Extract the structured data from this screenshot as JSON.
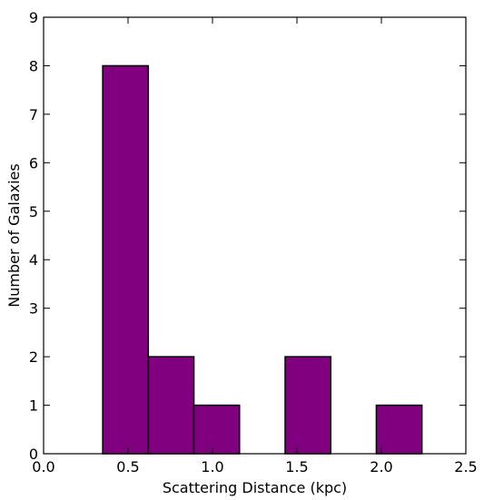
{
  "chart_data": {
    "type": "bar",
    "title": "",
    "xlabel": "Scattering Distance (kpc)",
    "ylabel": "Number of Galaxies",
    "xlim": [
      0.0,
      2.5
    ],
    "ylim": [
      0,
      9
    ],
    "xticks": [
      "0.0",
      "0.5",
      "1.0",
      "1.5",
      "2.0",
      "2.5"
    ],
    "yticks": [
      "0",
      "1",
      "2",
      "3",
      "4",
      "5",
      "6",
      "7",
      "8",
      "9"
    ],
    "bar_color": "#800080",
    "edge_color": "#000000",
    "grid": false,
    "bins": [
      {
        "x0": 0.35,
        "x1": 0.62,
        "count": 8
      },
      {
        "x0": 0.62,
        "x1": 0.89,
        "count": 2
      },
      {
        "x0": 0.89,
        "x1": 1.16,
        "count": 1
      },
      {
        "x0": 1.43,
        "x1": 1.7,
        "count": 2
      },
      {
        "x0": 1.97,
        "x1": 2.24,
        "count": 1
      }
    ]
  }
}
